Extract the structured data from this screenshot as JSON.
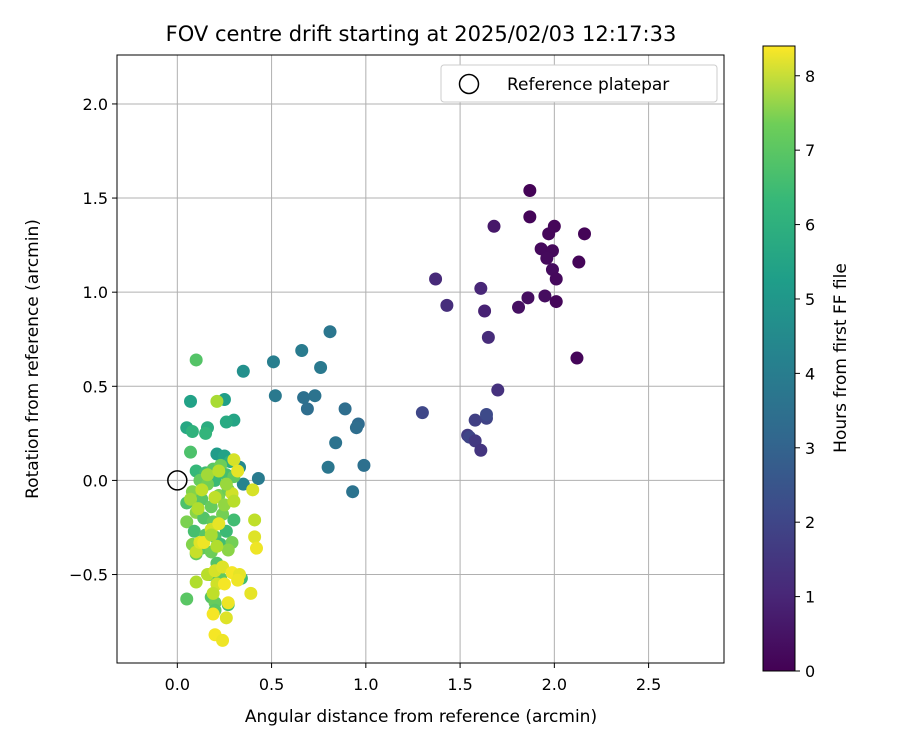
{
  "chart_data": {
    "type": "scatter",
    "title": "FOV centre drift starting at 2025/02/03 12:17:33",
    "xlabel": "Angular distance from reference (arcmin)",
    "ylabel": "Rotation from reference (arcmin)",
    "xlim": [
      -0.32,
      2.9
    ],
    "ylim": [
      -0.97,
      2.26
    ],
    "xticks": [
      "0.0",
      "0.5",
      "1.0",
      "1.5",
      "2.0",
      "2.5"
    ],
    "xtick_values": [
      0.0,
      0.5,
      1.0,
      1.5,
      2.0,
      2.5
    ],
    "yticks": [
      "−0.5",
      "0.0",
      "0.5",
      "1.0",
      "1.5",
      "2.0"
    ],
    "ytick_values": [
      -0.5,
      0.0,
      0.5,
      1.0,
      1.5,
      2.0
    ],
    "grid": true,
    "colormap": "viridis",
    "colorbar": {
      "label": "Hours from first FF file",
      "range": [
        0,
        8.4
      ],
      "ticks": [
        "0",
        "1",
        "2",
        "3",
        "4",
        "5",
        "6",
        "7",
        "8"
      ],
      "tick_values": [
        0,
        1,
        2,
        3,
        4,
        5,
        6,
        7,
        8
      ]
    },
    "legend": {
      "position": "top-right",
      "label": "Reference platepar",
      "marker": "open-circle",
      "reference_point": [
        0.0,
        0.0
      ]
    },
    "points": [
      [
        1.87,
        1.54,
        0.05
      ],
      [
        1.87,
        1.4,
        0.1
      ],
      [
        2.0,
        1.35,
        0.12
      ],
      [
        2.16,
        1.31,
        0.08
      ],
      [
        1.97,
        1.31,
        0.15
      ],
      [
        1.93,
        1.23,
        0.2
      ],
      [
        1.99,
        1.22,
        0.18
      ],
      [
        1.96,
        1.18,
        0.22
      ],
      [
        2.13,
        1.16,
        0.1
      ],
      [
        1.99,
        1.12,
        0.25
      ],
      [
        2.01,
        1.07,
        0.2
      ],
      [
        1.86,
        0.97,
        0.3
      ],
      [
        1.95,
        0.98,
        0.28
      ],
      [
        2.01,
        0.95,
        0.15
      ],
      [
        1.81,
        0.92,
        0.35
      ],
      [
        2.12,
        0.65,
        0.12
      ],
      [
        1.68,
        1.35,
        0.55
      ],
      [
        1.37,
        1.07,
        1.0
      ],
      [
        1.43,
        0.93,
        1.1
      ],
      [
        1.61,
        1.02,
        0.9
      ],
      [
        1.63,
        0.9,
        0.8
      ],
      [
        1.65,
        0.76,
        1.05
      ],
      [
        1.7,
        0.48,
        1.2
      ],
      [
        1.3,
        0.36,
        1.8
      ],
      [
        1.58,
        0.32,
        1.6
      ],
      [
        1.64,
        0.33,
        1.7
      ],
      [
        1.64,
        0.35,
        1.9
      ],
      [
        1.54,
        0.24,
        1.5
      ],
      [
        1.55,
        0.23,
        1.75
      ],
      [
        1.58,
        0.21,
        1.4
      ],
      [
        1.61,
        0.16,
        1.3
      ],
      [
        0.81,
        0.79,
        3.3
      ],
      [
        0.76,
        0.6,
        3.4
      ],
      [
        0.66,
        0.69,
        3.5
      ],
      [
        0.51,
        0.63,
        3.6
      ],
      [
        0.35,
        0.58,
        4.2
      ],
      [
        0.73,
        0.45,
        3.2
      ],
      [
        0.67,
        0.44,
        3.1
      ],
      [
        0.69,
        0.38,
        3.0
      ],
      [
        0.52,
        0.45,
        3.4
      ],
      [
        0.89,
        0.38,
        3.0
      ],
      [
        0.96,
        0.3,
        2.9
      ],
      [
        0.95,
        0.28,
        3.0
      ],
      [
        0.84,
        0.2,
        3.2
      ],
      [
        0.99,
        0.08,
        3.1
      ],
      [
        0.8,
        0.07,
        3.3
      ],
      [
        0.93,
        -0.06,
        3.2
      ],
      [
        0.43,
        0.01,
        3.5
      ],
      [
        0.33,
        0.07,
        4.0
      ],
      [
        0.35,
        -0.02,
        3.8
      ],
      [
        0.1,
        0.64,
        6.1
      ],
      [
        0.07,
        0.42,
        4.8
      ],
      [
        0.25,
        0.43,
        4.7
      ],
      [
        0.3,
        0.32,
        4.9
      ],
      [
        0.26,
        0.31,
        5.1
      ],
      [
        0.05,
        0.28,
        5.0
      ],
      [
        0.16,
        0.28,
        5.2
      ],
      [
        0.08,
        0.26,
        5.4
      ],
      [
        0.15,
        0.25,
        5.5
      ],
      [
        0.21,
        0.14,
        4.6
      ],
      [
        0.25,
        0.13,
        4.8
      ],
      [
        0.28,
        0.1,
        5.3
      ],
      [
        0.07,
        0.15,
        6.0
      ],
      [
        0.1,
        0.05,
        5.6
      ],
      [
        0.15,
        0.04,
        5.8
      ],
      [
        0.19,
        0.06,
        6.2
      ],
      [
        0.23,
        0.08,
        6.5
      ],
      [
        0.26,
        0.03,
        5.9
      ],
      [
        0.3,
        0.02,
        6.3
      ],
      [
        0.2,
        0.0,
        5.7
      ],
      [
        0.12,
        0.0,
        6.4
      ],
      [
        0.16,
        -0.02,
        6.6
      ],
      [
        0.08,
        -0.06,
        6.8
      ],
      [
        0.05,
        -0.12,
        6.0
      ],
      [
        0.13,
        -0.1,
        6.2
      ],
      [
        0.18,
        -0.14,
        6.4
      ],
      [
        0.22,
        -0.08,
        6.7
      ],
      [
        0.27,
        -0.05,
        6.5
      ],
      [
        0.1,
        -0.17,
        6.9
      ],
      [
        0.14,
        -0.2,
        6.1
      ],
      [
        0.19,
        -0.22,
        6.3
      ],
      [
        0.24,
        -0.18,
        6.6
      ],
      [
        0.3,
        -0.21,
        5.8
      ],
      [
        0.05,
        -0.22,
        6.7
      ],
      [
        0.09,
        -0.27,
        5.9
      ],
      [
        0.15,
        -0.29,
        6.2
      ],
      [
        0.2,
        -0.3,
        6.0
      ],
      [
        0.26,
        -0.27,
        5.7
      ],
      [
        0.08,
        -0.34,
        6.8
      ],
      [
        0.13,
        -0.36,
        6.3
      ],
      [
        0.18,
        -0.38,
        6.5
      ],
      [
        0.23,
        -0.34,
        5.8
      ],
      [
        0.29,
        -0.33,
        6.6
      ],
      [
        0.27,
        -0.37,
        6.9
      ],
      [
        0.1,
        -0.39,
        6.4
      ],
      [
        0.21,
        -0.44,
        6.1
      ],
      [
        0.17,
        -0.5,
        6.0
      ],
      [
        0.23,
        -0.52,
        6.3
      ],
      [
        0.34,
        -0.52,
        5.8
      ],
      [
        0.05,
        -0.63,
        6.2
      ],
      [
        0.18,
        -0.62,
        6.1
      ],
      [
        0.2,
        -0.65,
        6.4
      ],
      [
        0.27,
        -0.66,
        5.9
      ],
      [
        0.2,
        -0.69,
        6.2
      ],
      [
        0.07,
        -0.1,
        7.2
      ],
      [
        0.11,
        -0.15,
        7.4
      ],
      [
        0.2,
        -0.09,
        7.6
      ],
      [
        0.25,
        -0.13,
        7.0
      ],
      [
        0.29,
        -0.07,
        7.8
      ],
      [
        0.3,
        -0.11,
        7.5
      ],
      [
        0.21,
        0.42,
        7.3
      ],
      [
        0.3,
        0.11,
        7.9
      ],
      [
        0.32,
        0.05,
        8.1
      ],
      [
        0.4,
        -0.05,
        7.9
      ],
      [
        0.41,
        -0.21,
        7.6
      ],
      [
        0.41,
        -0.3,
        8.0
      ],
      [
        0.42,
        -0.36,
        8.2
      ],
      [
        0.1,
        -0.38,
        7.7
      ],
      [
        0.12,
        -0.33,
        8.0
      ],
      [
        0.18,
        -0.26,
        7.8
      ],
      [
        0.22,
        -0.23,
        8.1
      ],
      [
        0.21,
        -0.35,
        7.4
      ],
      [
        0.14,
        -0.33,
        8.2
      ],
      [
        0.16,
        -0.5,
        7.5
      ],
      [
        0.2,
        -0.48,
        7.9
      ],
      [
        0.24,
        -0.46,
        8.0
      ],
      [
        0.29,
        -0.49,
        8.3
      ],
      [
        0.33,
        -0.5,
        8.1
      ],
      [
        0.32,
        -0.53,
        8.2
      ],
      [
        0.1,
        -0.54,
        7.4
      ],
      [
        0.21,
        -0.55,
        7.8
      ],
      [
        0.25,
        -0.55,
        8.3
      ],
      [
        0.39,
        -0.6,
        8.1
      ],
      [
        0.19,
        -0.6,
        7.6
      ],
      [
        0.27,
        -0.65,
        8.2
      ],
      [
        0.19,
        -0.71,
        8.3
      ],
      [
        0.26,
        -0.73,
        8.0
      ],
      [
        0.2,
        -0.82,
        8.3
      ],
      [
        0.24,
        -0.85,
        8.2
      ],
      [
        0.18,
        -0.29,
        7.3
      ],
      [
        0.26,
        -0.02,
        7.1
      ],
      [
        0.16,
        0.03,
        7.2
      ],
      [
        0.22,
        0.05,
        7.5
      ],
      [
        0.13,
        -0.05,
        7.6
      ]
    ]
  }
}
